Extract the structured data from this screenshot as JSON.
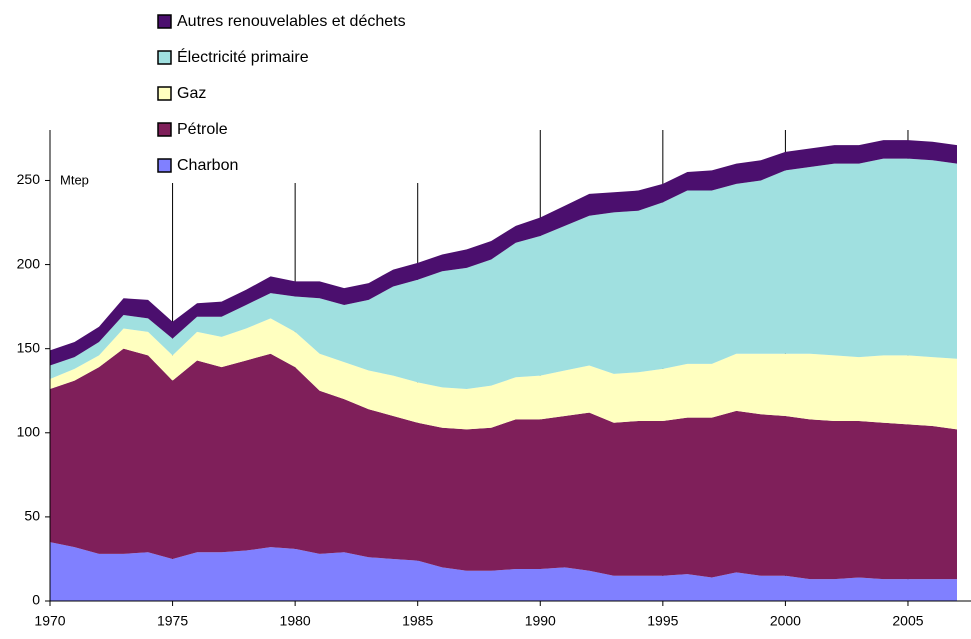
{
  "chart_data": {
    "type": "stacked_area",
    "y_label": "Mtep",
    "x": [
      1970,
      1971,
      1972,
      1973,
      1974,
      1975,
      1976,
      1977,
      1978,
      1979,
      1980,
      1981,
      1982,
      1983,
      1984,
      1985,
      1986,
      1987,
      1988,
      1989,
      1990,
      1991,
      1992,
      1993,
      1994,
      1995,
      1996,
      1997,
      1998,
      1999,
      2000,
      2001,
      2002,
      2003,
      2004,
      2005,
      2006,
      2007
    ],
    "series": [
      {
        "name": "Charbon",
        "color": "#8080ff",
        "values": [
          35,
          32,
          28,
          28,
          29,
          25,
          29,
          29,
          30,
          32,
          31,
          28,
          29,
          26,
          25,
          24,
          20,
          18,
          18,
          19,
          19,
          20,
          18,
          15,
          15,
          15,
          16,
          14,
          17,
          15,
          15,
          13,
          13,
          14,
          13,
          13,
          13,
          13
        ]
      },
      {
        "name": "Pétrole",
        "color": "#7f1f5a",
        "values": [
          91,
          99,
          111,
          122,
          117,
          106,
          114,
          110,
          113,
          115,
          108,
          97,
          91,
          88,
          85,
          82,
          83,
          84,
          85,
          89,
          89,
          90,
          94,
          91,
          92,
          92,
          93,
          95,
          96,
          96,
          95,
          95,
          94,
          93,
          93,
          92,
          91,
          89
        ]
      },
      {
        "name": "Gaz",
        "color": "#ffffc0",
        "values": [
          6,
          7,
          7,
          12,
          14,
          15,
          17,
          18,
          19,
          21,
          21,
          22,
          22,
          23,
          24,
          24,
          24,
          24,
          25,
          25,
          26,
          27,
          28,
          29,
          29,
          31,
          32,
          32,
          34,
          36,
          37,
          39,
          39,
          38,
          40,
          41,
          41,
          42
        ]
      },
      {
        "name": "Électricité primaire",
        "color": "#a0e0e0",
        "values": [
          8,
          7,
          8,
          8,
          8,
          10,
          9,
          12,
          14,
          15,
          21,
          33,
          34,
          42,
          53,
          61,
          69,
          72,
          75,
          80,
          83,
          86,
          89,
          96,
          96,
          99,
          103,
          103,
          101,
          103,
          109,
          111,
          114,
          115,
          117,
          117,
          117,
          116
        ]
      },
      {
        "name": "Autres renouvelables et déchets",
        "color": "#4b0f6e",
        "values": [
          9,
          9,
          9,
          10,
          11,
          10,
          8,
          9,
          9,
          10,
          9,
          10,
          10,
          10,
          10,
          10,
          10,
          11,
          11,
          10,
          11,
          12,
          13,
          12,
          12,
          11,
          11,
          12,
          12,
          12,
          11,
          11,
          11,
          11,
          11,
          11,
          11,
          11
        ]
      }
    ],
    "xlim": [
      1970,
      2007
    ],
    "xticks": [
      1970,
      1975,
      1980,
      1985,
      1990,
      1995,
      2000,
      2005
    ],
    "ylim": [
      0,
      280
    ],
    "yticks": [
      0,
      50,
      100,
      150,
      200,
      250
    ],
    "grid": "x",
    "legend": "top-left"
  }
}
